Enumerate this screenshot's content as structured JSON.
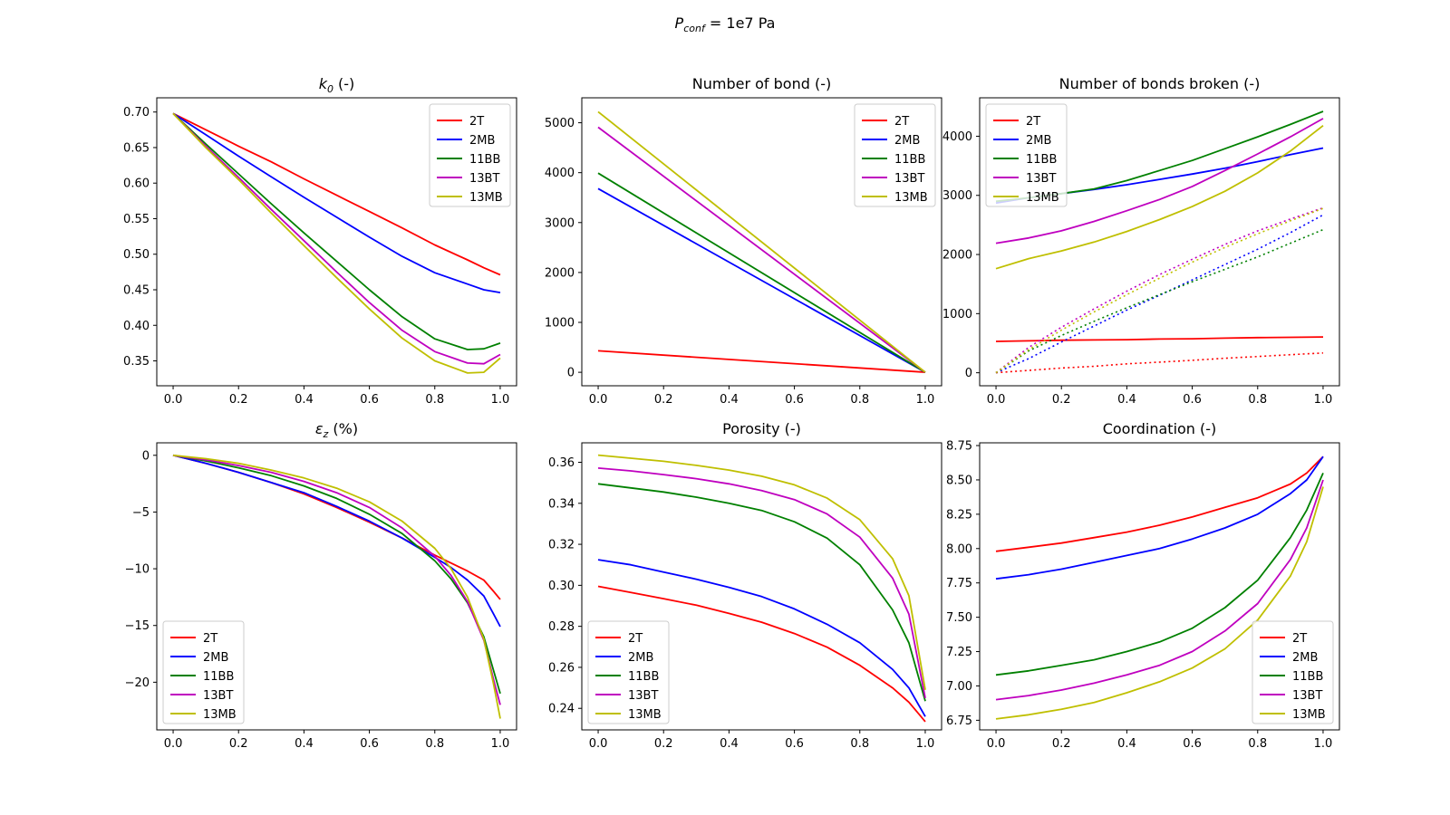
{
  "figure": {
    "suptitle": {
      "symbol": "P",
      "subscript": "conf",
      "rest": " = 1e7 Pa"
    },
    "colors": {
      "2T": "#ff0000",
      "2MB": "#0000ff",
      "11BB": "#008000",
      "13BT": "#bf00bf",
      "13MB": "#bfbf00"
    }
  },
  "chart_data": [
    {
      "type": "line",
      "title": "k_0 (-)",
      "title_parts": {
        "symbol": "k",
        "subscript": "0",
        "rest": " (-)"
      },
      "xlim": [
        -0.05,
        1.05
      ],
      "ylim": [
        0.315,
        0.72
      ],
      "xticks": [
        0.0,
        0.2,
        0.4,
        0.6,
        0.8,
        1.0
      ],
      "xtick_labels": [
        "0.0",
        "0.2",
        "0.4",
        "0.6",
        "0.8",
        "1.0"
      ],
      "yticks": [
        0.35,
        0.4,
        0.45,
        0.5,
        0.55,
        0.6,
        0.65,
        0.7
      ],
      "ytick_labels": [
        "0.35",
        "0.40",
        "0.45",
        "0.50",
        "0.55",
        "0.60",
        "0.65",
        "0.70"
      ],
      "legend": "upper-right",
      "x": [
        0,
        0.1,
        0.2,
        0.3,
        0.4,
        0.5,
        0.6,
        0.7,
        0.8,
        0.9,
        0.95,
        1.0
      ],
      "series": [
        {
          "name": "2T",
          "values": [
            0.698,
            0.675,
            0.652,
            0.63,
            0.606,
            0.583,
            0.56,
            0.537,
            0.513,
            0.492,
            0.481,
            0.471
          ]
        },
        {
          "name": "2MB",
          "values": [
            0.698,
            0.668,
            0.638,
            0.609,
            0.58,
            0.552,
            0.524,
            0.497,
            0.474,
            0.458,
            0.45,
            0.446
          ]
        },
        {
          "name": "11BB",
          "values": [
            0.698,
            0.655,
            0.613,
            0.571,
            0.53,
            0.49,
            0.45,
            0.412,
            0.381,
            0.366,
            0.367,
            0.375
          ]
        },
        {
          "name": "13BT",
          "values": [
            0.698,
            0.652,
            0.608,
            0.563,
            0.519,
            0.475,
            0.432,
            0.393,
            0.363,
            0.347,
            0.346,
            0.359
          ]
        },
        {
          "name": "13MB",
          "values": [
            0.698,
            0.65,
            0.605,
            0.558,
            0.512,
            0.467,
            0.423,
            0.382,
            0.35,
            0.333,
            0.334,
            0.354
          ]
        }
      ]
    },
    {
      "type": "line",
      "title": "Number of bond (-)",
      "xlim": [
        -0.05,
        1.05
      ],
      "ylim": [
        -270,
        5500
      ],
      "xticks": [
        0.0,
        0.2,
        0.4,
        0.6,
        0.8,
        1.0
      ],
      "xtick_labels": [
        "0.0",
        "0.2",
        "0.4",
        "0.6",
        "0.8",
        "1.0"
      ],
      "yticks": [
        0,
        1000,
        2000,
        3000,
        4000,
        5000
      ],
      "ytick_labels": [
        "0",
        "1000",
        "2000",
        "3000",
        "4000",
        "5000"
      ],
      "legend": "upper-right",
      "x": [
        0,
        1
      ],
      "series": [
        {
          "name": "2T",
          "values": [
            430,
            0
          ]
        },
        {
          "name": "2MB",
          "values": [
            3680,
            0
          ]
        },
        {
          "name": "11BB",
          "values": [
            3990,
            0
          ]
        },
        {
          "name": "13BT",
          "values": [
            4910,
            0
          ]
        },
        {
          "name": "13MB",
          "values": [
            5220,
            0
          ]
        }
      ]
    },
    {
      "type": "line",
      "title": "Number of bonds broken (-)",
      "xlim": [
        -0.05,
        1.05
      ],
      "ylim": [
        -220,
        4650
      ],
      "xticks": [
        0.0,
        0.2,
        0.4,
        0.6,
        0.8,
        1.0
      ],
      "xtick_labels": [
        "0.0",
        "0.2",
        "0.4",
        "0.6",
        "0.8",
        "1.0"
      ],
      "yticks": [
        0,
        1000,
        2000,
        3000,
        4000
      ],
      "ytick_labels": [
        "0",
        "1000",
        "2000",
        "3000",
        "4000"
      ],
      "legend": "upper-left",
      "x": [
        0,
        0.1,
        0.2,
        0.3,
        0.4,
        0.5,
        0.6,
        0.7,
        0.8,
        0.9,
        1.0
      ],
      "series": [
        {
          "name": "2T",
          "style": "solid",
          "values": [
            530,
            540,
            550,
            555,
            560,
            570,
            575,
            585,
            595,
            600,
            605
          ]
        },
        {
          "name": "2MB",
          "style": "solid",
          "values": [
            2870,
            2960,
            3030,
            3100,
            3180,
            3270,
            3360,
            3460,
            3570,
            3690,
            3800
          ]
        },
        {
          "name": "11BB",
          "style": "solid",
          "values": [
            2900,
            2960,
            3030,
            3110,
            3250,
            3420,
            3590,
            3790,
            3990,
            4200,
            4420
          ]
        },
        {
          "name": "13BT",
          "style": "solid",
          "values": [
            2190,
            2280,
            2400,
            2560,
            2740,
            2930,
            3150,
            3420,
            3700,
            3990,
            4300
          ]
        },
        {
          "name": "13MB",
          "style": "solid",
          "values": [
            1760,
            1930,
            2060,
            2210,
            2390,
            2590,
            2810,
            3070,
            3380,
            3750,
            4180
          ]
        },
        {
          "name": "2T",
          "style": "dotted",
          "values": [
            0,
            40,
            80,
            110,
            150,
            180,
            210,
            245,
            275,
            305,
            335
          ]
        },
        {
          "name": "2MB",
          "style": "dotted",
          "values": [
            0,
            240,
            520,
            790,
            1060,
            1310,
            1570,
            1830,
            2090,
            2370,
            2670
          ]
        },
        {
          "name": "11BB",
          "style": "dotted",
          "values": [
            0,
            370,
            630,
            870,
            1100,
            1320,
            1540,
            1750,
            1960,
            2190,
            2420
          ]
        },
        {
          "name": "13BT",
          "style": "dotted",
          "values": [
            0,
            430,
            770,
            1080,
            1380,
            1660,
            1920,
            2170,
            2400,
            2600,
            2790
          ]
        },
        {
          "name": "13MB",
          "style": "dotted",
          "values": [
            0,
            390,
            720,
            1030,
            1320,
            1600,
            1870,
            2120,
            2350,
            2570,
            2780
          ]
        }
      ]
    },
    {
      "type": "line",
      "title": "ε_z (%)",
      "title_parts": {
        "symbol": "ε",
        "subscript": "z",
        "rest": " (%)"
      },
      "xlim": [
        -0.05,
        1.05
      ],
      "ylim": [
        -24.2,
        1.1
      ],
      "xticks": [
        0.0,
        0.2,
        0.4,
        0.6,
        0.8,
        1.0
      ],
      "xtick_labels": [
        "0.0",
        "0.2",
        "0.4",
        "0.6",
        "0.8",
        "1.0"
      ],
      "yticks": [
        0,
        -5,
        -10,
        -15,
        -20
      ],
      "ytick_labels": [
        "0",
        "−5",
        "−10",
        "−15",
        "−20"
      ],
      "legend": "lower-left",
      "x": [
        0,
        0.1,
        0.2,
        0.3,
        0.4,
        0.5,
        0.6,
        0.7,
        0.8,
        0.85,
        0.9,
        0.95,
        0.98,
        1.0
      ],
      "series": [
        {
          "name": "2T",
          "values": [
            0,
            -0.7,
            -1.5,
            -2.4,
            -3.4,
            -4.6,
            -5.9,
            -7.3,
            -8.8,
            -9.5,
            -10.2,
            -11.0,
            -12.0,
            -12.7
          ]
        },
        {
          "name": "2MB",
          "values": [
            0,
            -0.7,
            -1.5,
            -2.4,
            -3.3,
            -4.5,
            -5.8,
            -7.3,
            -9.0,
            -9.9,
            -11.0,
            -12.4,
            -14.0,
            -15.1
          ]
        },
        {
          "name": "11BB",
          "values": [
            0,
            -0.5,
            -1.1,
            -1.8,
            -2.7,
            -3.8,
            -5.2,
            -6.9,
            -9.3,
            -10.9,
            -13.0,
            -16.0,
            -19.0,
            -21.0
          ]
        },
        {
          "name": "13BT",
          "values": [
            0,
            -0.4,
            -0.9,
            -1.5,
            -2.3,
            -3.3,
            -4.6,
            -6.4,
            -8.9,
            -10.6,
            -12.9,
            -16.3,
            -19.8,
            -22.0
          ]
        },
        {
          "name": "13MB",
          "values": [
            0,
            -0.3,
            -0.7,
            -1.3,
            -2.0,
            -2.9,
            -4.1,
            -5.8,
            -8.2,
            -10.0,
            -12.5,
            -16.2,
            -20.2,
            -23.2
          ]
        }
      ]
    },
    {
      "type": "line",
      "title": "Porosity (-)",
      "xlim": [
        -0.05,
        1.05
      ],
      "ylim": [
        0.2295,
        0.3695
      ],
      "xticks": [
        0.0,
        0.2,
        0.4,
        0.6,
        0.8,
        1.0
      ],
      "xtick_labels": [
        "0.0",
        "0.2",
        "0.4",
        "0.6",
        "0.8",
        "1.0"
      ],
      "yticks": [
        0.24,
        0.26,
        0.28,
        0.3,
        0.32,
        0.34,
        0.36
      ],
      "ytick_labels": [
        "0.24",
        "0.26",
        "0.28",
        "0.30",
        "0.32",
        "0.34",
        "0.36"
      ],
      "legend": "lower-left",
      "x": [
        0,
        0.1,
        0.2,
        0.3,
        0.4,
        0.5,
        0.6,
        0.7,
        0.8,
        0.9,
        0.95,
        1.0
      ],
      "series": [
        {
          "name": "2T",
          "values": [
            0.2995,
            0.2965,
            0.2935,
            0.2903,
            0.2863,
            0.282,
            0.2765,
            0.2698,
            0.261,
            0.25,
            0.243,
            0.2335
          ]
        },
        {
          "name": "2MB",
          "values": [
            0.3125,
            0.31,
            0.3065,
            0.303,
            0.299,
            0.2945,
            0.2885,
            0.281,
            0.272,
            0.259,
            0.25,
            0.236
          ]
        },
        {
          "name": "11BB",
          "values": [
            0.3495,
            0.3475,
            0.3455,
            0.343,
            0.34,
            0.3365,
            0.331,
            0.323,
            0.31,
            0.288,
            0.272,
            0.2435
          ]
        },
        {
          "name": "13BT",
          "values": [
            0.3572,
            0.3558,
            0.354,
            0.352,
            0.3495,
            0.3462,
            0.3418,
            0.3348,
            0.3235,
            0.3035,
            0.286,
            0.245
          ]
        },
        {
          "name": "13MB",
          "values": [
            0.3635,
            0.362,
            0.3605,
            0.3585,
            0.3562,
            0.3532,
            0.349,
            0.3425,
            0.332,
            0.313,
            0.295,
            0.249
          ]
        }
      ]
    },
    {
      "type": "line",
      "title": "Coordination (-)",
      "xlim": [
        -0.05,
        1.05
      ],
      "ylim": [
        6.68,
        8.77
      ],
      "xticks": [
        0.0,
        0.2,
        0.4,
        0.6,
        0.8,
        1.0
      ],
      "xtick_labels": [
        "0.0",
        "0.2",
        "0.4",
        "0.6",
        "0.8",
        "1.0"
      ],
      "yticks": [
        6.75,
        7.0,
        7.25,
        7.5,
        7.75,
        8.0,
        8.25,
        8.5,
        8.75
      ],
      "ytick_labels": [
        "6.75",
        "7.00",
        "7.25",
        "7.50",
        "7.75",
        "8.00",
        "8.25",
        "8.50",
        "8.75"
      ],
      "legend": "lower-right",
      "x": [
        0,
        0.1,
        0.2,
        0.3,
        0.4,
        0.5,
        0.6,
        0.7,
        0.8,
        0.9,
        0.95,
        1.0
      ],
      "series": [
        {
          "name": "2T",
          "values": [
            7.98,
            8.01,
            8.04,
            8.08,
            8.12,
            8.17,
            8.23,
            8.3,
            8.37,
            8.47,
            8.55,
            8.67
          ]
        },
        {
          "name": "2MB",
          "values": [
            7.78,
            7.81,
            7.85,
            7.9,
            7.95,
            8.0,
            8.07,
            8.15,
            8.25,
            8.4,
            8.5,
            8.67
          ]
        },
        {
          "name": "11BB",
          "values": [
            7.08,
            7.11,
            7.15,
            7.19,
            7.25,
            7.32,
            7.42,
            7.57,
            7.77,
            8.08,
            8.28,
            8.55
          ]
        },
        {
          "name": "13BT",
          "values": [
            6.9,
            6.93,
            6.97,
            7.02,
            7.08,
            7.15,
            7.25,
            7.4,
            7.6,
            7.92,
            8.15,
            8.5
          ]
        },
        {
          "name": "13MB",
          "values": [
            6.76,
            6.79,
            6.83,
            6.88,
            6.95,
            7.03,
            7.13,
            7.27,
            7.48,
            7.8,
            8.05,
            8.45
          ]
        }
      ]
    }
  ]
}
